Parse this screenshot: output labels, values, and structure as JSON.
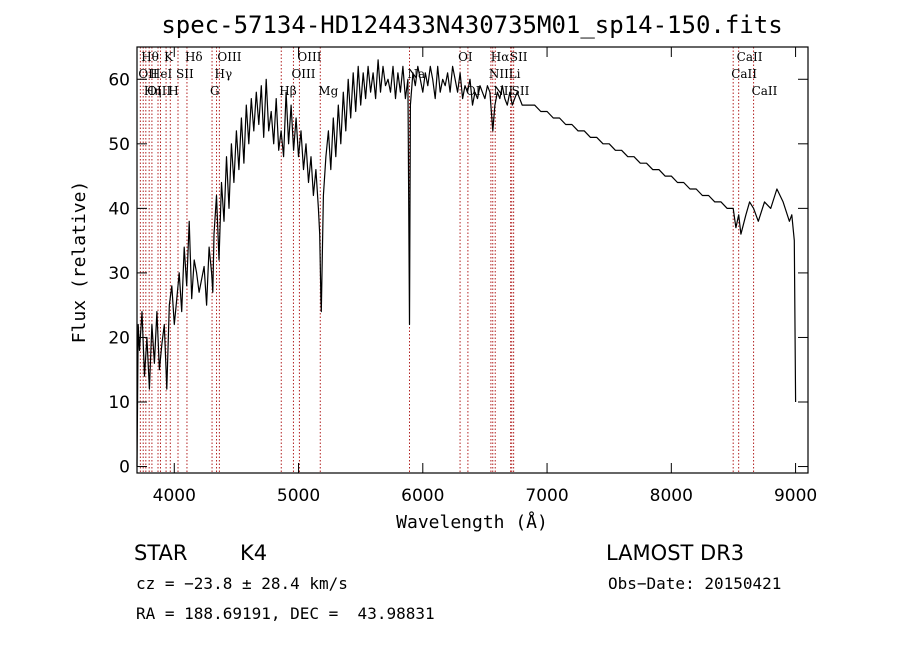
{
  "chart_data": {
    "type": "line",
    "title": "spec-57134-HD124433N430735M01_sp14-150.fits",
    "xlabel": "Wavelength (Å)",
    "ylabel": "Flux (relative)",
    "xlim": [
      3700,
      9100
    ],
    "ylim": [
      -1,
      65
    ],
    "xticks": [
      4000,
      5000,
      6000,
      7000,
      8000,
      9000
    ],
    "yticks": [
      0,
      10,
      20,
      30,
      40,
      50,
      60
    ],
    "series": [
      {
        "name": "flux",
        "x": [
          3700,
          3710,
          3720,
          3740,
          3760,
          3780,
          3800,
          3820,
          3840,
          3860,
          3880,
          3900,
          3920,
          3940,
          3960,
          3980,
          4000,
          4020,
          4040,
          4060,
          4080,
          4100,
          4120,
          4140,
          4160,
          4180,
          4200,
          4220,
          4240,
          4260,
          4280,
          4300,
          4310,
          4320,
          4340,
          4360,
          4380,
          4400,
          4420,
          4440,
          4460,
          4480,
          4500,
          4520,
          4540,
          4560,
          4580,
          4600,
          4620,
          4640,
          4660,
          4680,
          4700,
          4720,
          4740,
          4760,
          4780,
          4800,
          4820,
          4840,
          4860,
          4880,
          4900,
          4920,
          4940,
          4960,
          4980,
          5000,
          5020,
          5040,
          5060,
          5080,
          5100,
          5120,
          5140,
          5160,
          5170,
          5180,
          5183,
          5200,
          5220,
          5240,
          5260,
          5280,
          5300,
          5320,
          5340,
          5360,
          5380,
          5400,
          5420,
          5440,
          5460,
          5480,
          5500,
          5520,
          5540,
          5560,
          5580,
          5600,
          5620,
          5640,
          5660,
          5680,
          5700,
          5720,
          5740,
          5760,
          5780,
          5800,
          5820,
          5840,
          5860,
          5880,
          5893,
          5900,
          5920,
          5940,
          5960,
          5980,
          6000,
          6020,
          6040,
          6060,
          6080,
          6100,
          6120,
          6140,
          6160,
          6180,
          6200,
          6220,
          6240,
          6260,
          6280,
          6300,
          6320,
          6340,
          6360,
          6380,
          6400,
          6420,
          6440,
          6460,
          6480,
          6500,
          6520,
          6540,
          6563,
          6580,
          6600,
          6620,
          6640,
          6660,
          6680,
          6700,
          6720,
          6740,
          6760,
          6780,
          6800,
          6850,
          6900,
          6950,
          7000,
          7050,
          7100,
          7150,
          7200,
          7250,
          7300,
          7350,
          7400,
          7450,
          7500,
          7550,
          7600,
          7650,
          7700,
          7750,
          7800,
          7850,
          7900,
          7950,
          8000,
          8050,
          8100,
          8150,
          8200,
          8250,
          8300,
          8350,
          8400,
          8450,
          8498,
          8520,
          8542,
          8560,
          8600,
          8630,
          8662,
          8700,
          8750,
          8800,
          8850,
          8900,
          8950,
          8970,
          8990,
          9000
        ],
        "y": [
          0,
          22,
          18,
          24,
          14,
          20,
          12,
          22,
          16,
          24,
          15,
          19,
          22,
          12,
          25,
          28,
          22,
          26,
          30,
          24,
          34,
          28,
          38,
          26,
          32,
          30,
          27,
          29,
          31,
          25,
          34,
          30,
          27,
          36,
          42,
          32,
          44,
          38,
          48,
          40,
          50,
          44,
          52,
          46,
          54,
          47,
          56,
          50,
          57,
          52,
          58,
          53,
          59,
          51,
          60,
          52,
          55,
          50,
          57,
          49,
          52,
          48,
          58,
          50,
          56,
          49,
          54,
          48,
          52,
          46,
          50,
          44,
          48,
          42,
          46,
          40,
          36,
          26,
          24,
          42,
          48,
          52,
          46,
          54,
          48,
          56,
          50,
          58,
          52,
          60,
          54,
          61,
          55,
          62,
          56,
          61,
          57,
          62,
          58,
          61,
          57,
          63,
          58,
          62,
          59,
          60,
          58,
          62,
          57,
          61,
          58,
          62,
          57,
          60,
          22,
          56,
          61,
          59,
          62,
          60,
          58,
          61,
          59,
          62,
          60,
          57,
          62,
          58,
          60,
          59,
          61,
          58,
          62,
          60,
          58,
          61,
          57,
          59,
          58,
          60,
          56,
          58,
          57,
          59,
          58,
          57,
          59,
          58,
          52,
          56,
          58,
          57,
          59,
          57,
          56,
          58,
          56,
          57,
          58,
          57,
          56,
          56,
          56,
          55,
          55,
          54,
          54,
          53,
          53,
          52,
          52,
          51,
          51,
          50,
          50,
          49,
          49,
          48,
          48,
          47,
          47,
          46,
          46,
          45,
          45,
          44,
          44,
          43,
          43,
          42,
          42,
          41,
          41,
          40,
          40,
          37,
          39,
          36,
          39,
          41,
          40,
          38,
          41,
          40,
          43,
          41,
          38,
          39,
          35,
          10
        ]
      }
    ],
    "lines": [
      {
        "w": 3727,
        "label": "OII",
        "row": 1
      },
      {
        "w": 3750,
        "label": "Hθ",
        "row": 0
      },
      {
        "w": 3771,
        "label": "Hη",
        "row": 2
      },
      {
        "w": 3798,
        "label": "OIII",
        "row": 2
      },
      {
        "w": 3820,
        "label": "HeI",
        "row": 1
      },
      {
        "w": 3869,
        "label": "",
        "row": 2
      },
      {
        "w": 3889,
        "label": "",
        "row": 2
      },
      {
        "w": 3934,
        "label": "K",
        "row": 0
      },
      {
        "w": 3968,
        "label": "H",
        "row": 2
      },
      {
        "w": 4030,
        "label": "SII",
        "row": 1
      },
      {
        "w": 4102,
        "label": "Hδ",
        "row": 0
      },
      {
        "w": 4304,
        "label": "G",
        "row": 2
      },
      {
        "w": 4340,
        "label": "Hγ",
        "row": 1
      },
      {
        "w": 4363,
        "label": "OIII",
        "row": 0
      },
      {
        "w": 4861,
        "label": "Hβ",
        "row": 2
      },
      {
        "w": 4959,
        "label": "OIII",
        "row": 1
      },
      {
        "w": 5007,
        "label": "OIII",
        "row": 0
      },
      {
        "w": 5175,
        "label": "Mg",
        "row": 2
      },
      {
        "w": 5893,
        "label": "Na",
        "row": 1
      },
      {
        "w": 6300,
        "label": "OI",
        "row": 0
      },
      {
        "w": 6363,
        "label": "OI",
        "row": 2
      },
      {
        "w": 6548,
        "label": "NII",
        "row": 1
      },
      {
        "w": 6563,
        "label": "Hα",
        "row": 0
      },
      {
        "w": 6583,
        "label": "NII",
        "row": 2
      },
      {
        "w": 6707,
        "label": "Li",
        "row": 1
      },
      {
        "w": 6716,
        "label": "SII",
        "row": 0
      },
      {
        "w": 6731,
        "label": "SII",
        "row": 2
      },
      {
        "w": 8498,
        "label": "CaII",
        "row": 1
      },
      {
        "w": 8542,
        "label": "CaII",
        "row": 0
      },
      {
        "w": 8662,
        "label": "CaII",
        "row": 2
      }
    ]
  },
  "info": {
    "object_type": "STAR",
    "subclass": "K4",
    "survey": "LAMOST DR3",
    "redshift": "cz = −23.8 ± 28.4 km/s",
    "obs_date": "Obs−Date: 20150421",
    "coords": "RA = 188.69191, DEC =  43.98831"
  },
  "colors": {
    "line": "#000000",
    "marker": "#b22222"
  }
}
